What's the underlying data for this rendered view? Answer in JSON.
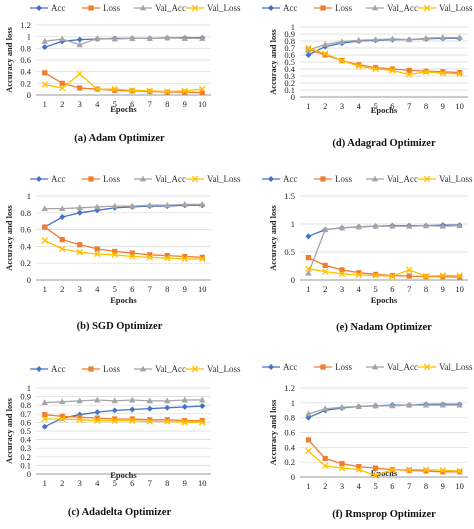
{
  "colors": {
    "acc": "#4472C4",
    "loss": "#ED7D31",
    "val_acc": "#A5A5A5",
    "val_loss": "#FFC000"
  },
  "chart_data": [
    {
      "type": "line",
      "caption": "(a) Adam Optimizer",
      "xlabel": "Epochs",
      "ylabel": "Accuracy and loss",
      "x": [
        1,
        2,
        3,
        4,
        5,
        6,
        7,
        8,
        9,
        10
      ],
      "ylim": [
        0,
        1.2
      ],
      "yticks": [
        "0",
        "0.2",
        "0.4",
        "0.6",
        "0.8",
        "1",
        "1.2"
      ],
      "grid": true,
      "legend": "top",
      "series": [
        {
          "name": "Acc",
          "values": [
            0.82,
            0.92,
            0.95,
            0.96,
            0.97,
            0.97,
            0.97,
            0.98,
            0.98,
            0.98
          ]
        },
        {
          "name": "Loss",
          "values": [
            0.38,
            0.2,
            0.12,
            0.1,
            0.08,
            0.07,
            0.06,
            0.05,
            0.05,
            0.04
          ]
        },
        {
          "name": "Val_Acc",
          "values": [
            0.92,
            0.96,
            0.86,
            0.97,
            0.96,
            0.97,
            0.97,
            0.98,
            0.97,
            0.97
          ]
        },
        {
          "name": "Val_Loss",
          "values": [
            0.18,
            0.12,
            0.36,
            0.1,
            0.1,
            0.08,
            0.07,
            0.06,
            0.07,
            0.1
          ]
        }
      ]
    },
    {
      "type": "line",
      "caption": "(d) Adagrad Optimizer",
      "xlabel": "Epochs",
      "ylabel": "Accuracy and loss",
      "x": [
        1,
        2,
        3,
        4,
        5,
        6,
        7,
        8,
        9,
        10
      ],
      "ylim": [
        0,
        1
      ],
      "yticks": [
        "0",
        "0.1",
        "0.2",
        "0.3",
        "0.4",
        "0.5",
        "0.6",
        "0.7",
        "0.8",
        "0.9",
        "1"
      ],
      "grid": true,
      "legend": "top",
      "series": [
        {
          "name": "Acc",
          "values": [
            0.6,
            0.72,
            0.77,
            0.8,
            0.81,
            0.82,
            0.82,
            0.83,
            0.84,
            0.84
          ]
        },
        {
          "name": "Loss",
          "values": [
            0.68,
            0.6,
            0.52,
            0.46,
            0.42,
            0.4,
            0.38,
            0.37,
            0.36,
            0.35
          ]
        },
        {
          "name": "Val_Acc",
          "values": [
            0.67,
            0.75,
            0.79,
            0.81,
            0.82,
            0.83,
            0.82,
            0.84,
            0.85,
            0.85
          ]
        },
        {
          "name": "Val_Loss",
          "values": [
            0.7,
            0.62,
            0.52,
            0.44,
            0.4,
            0.38,
            0.32,
            0.36,
            0.34,
            0.33
          ]
        }
      ]
    },
    {
      "type": "line",
      "caption": "(b) SGD Optimizer",
      "xlabel": "Epochs",
      "ylabel": "Accuracy and loss",
      "x": [
        1,
        2,
        3,
        4,
        5,
        6,
        7,
        8,
        9,
        10
      ],
      "ylim": [
        0,
        1
      ],
      "yticks": [
        "0",
        "0.2",
        "0.4",
        "0.6",
        "0.8",
        "1"
      ],
      "grid": true,
      "legend": "top",
      "series": [
        {
          "name": "Acc",
          "values": [
            0.63,
            0.75,
            0.8,
            0.83,
            0.86,
            0.87,
            0.88,
            0.88,
            0.89,
            0.89
          ]
        },
        {
          "name": "Loss",
          "values": [
            0.63,
            0.48,
            0.42,
            0.37,
            0.34,
            0.32,
            0.3,
            0.29,
            0.28,
            0.27
          ]
        },
        {
          "name": "Val_Acc",
          "values": [
            0.85,
            0.85,
            0.86,
            0.87,
            0.88,
            0.88,
            0.89,
            0.89,
            0.9,
            0.9
          ]
        },
        {
          "name": "Val_Loss",
          "values": [
            0.47,
            0.37,
            0.33,
            0.31,
            0.3,
            0.28,
            0.27,
            0.26,
            0.25,
            0.25
          ]
        }
      ]
    },
    {
      "type": "line",
      "caption": "(e) Nadam Optimizer",
      "xlabel": "Epochs",
      "ylabel": "Accuracy and loss",
      "x": [
        1,
        2,
        3,
        4,
        5,
        6,
        7,
        8,
        9,
        10
      ],
      "ylim": [
        0,
        1.5
      ],
      "yticks": [
        "0",
        "0.5",
        "1",
        "1.5"
      ],
      "grid": true,
      "legend": "top",
      "series": [
        {
          "name": "Acc",
          "values": [
            0.78,
            0.9,
            0.93,
            0.95,
            0.96,
            0.97,
            0.97,
            0.97,
            0.98,
            0.98
          ]
        },
        {
          "name": "Loss",
          "values": [
            0.4,
            0.26,
            0.18,
            0.13,
            0.1,
            0.08,
            0.07,
            0.06,
            0.06,
            0.05
          ]
        },
        {
          "name": "Val_Acc",
          "values": [
            0.12,
            0.9,
            0.93,
            0.95,
            0.96,
            0.96,
            0.96,
            0.97,
            0.96,
            0.97
          ]
        },
        {
          "name": "Val_Loss",
          "values": [
            0.2,
            0.15,
            0.11,
            0.09,
            0.08,
            0.07,
            0.18,
            0.07,
            0.08,
            0.08
          ]
        }
      ]
    },
    {
      "type": "line",
      "caption": "(c) Adadelta Optimizer",
      "xlabel": "Epochs",
      "ylabel": "Accuracy and loss",
      "x": [
        1,
        2,
        3,
        4,
        5,
        6,
        7,
        8,
        9,
        10
      ],
      "ylim": [
        0,
        1
      ],
      "yticks": [
        "0",
        "0.1",
        "0.2",
        "0.3",
        "0.4",
        "0.5",
        "0.6",
        "0.7",
        "0.8",
        "0.9",
        "1"
      ],
      "grid": true,
      "legend": "top",
      "series": [
        {
          "name": "Acc",
          "values": [
            0.55,
            0.65,
            0.69,
            0.72,
            0.74,
            0.75,
            0.76,
            0.77,
            0.78,
            0.79
          ]
        },
        {
          "name": "Loss",
          "values": [
            0.69,
            0.67,
            0.66,
            0.65,
            0.64,
            0.64,
            0.63,
            0.63,
            0.62,
            0.62
          ]
        },
        {
          "name": "Val_Acc",
          "values": [
            0.83,
            0.84,
            0.85,
            0.86,
            0.85,
            0.86,
            0.85,
            0.85,
            0.86,
            0.86
          ]
        },
        {
          "name": "Val_Loss",
          "values": [
            0.64,
            0.64,
            0.63,
            0.62,
            0.62,
            0.62,
            0.61,
            0.61,
            0.6,
            0.6
          ]
        }
      ]
    },
    {
      "type": "line",
      "caption": "(f) Rmsprop Optimizer",
      "xlabel": "Epochs",
      "ylabel": "Accuracy and loss",
      "x": [
        1,
        2,
        3,
        4,
        5,
        6,
        7,
        8,
        9,
        10
      ],
      "ylim": [
        0,
        1.2
      ],
      "yticks": [
        "0",
        "0.2",
        "0.4",
        "0.6",
        "0.8",
        "1",
        "1.2"
      ],
      "grid": true,
      "legend": "top",
      "series": [
        {
          "name": "Acc",
          "values": [
            0.8,
            0.9,
            0.93,
            0.95,
            0.96,
            0.97,
            0.97,
            0.98,
            0.98,
            0.98
          ]
        },
        {
          "name": "Loss",
          "values": [
            0.5,
            0.25,
            0.18,
            0.14,
            0.12,
            0.1,
            0.09,
            0.08,
            0.07,
            0.07
          ]
        },
        {
          "name": "Val_Acc",
          "values": [
            0.85,
            0.92,
            0.94,
            0.95,
            0.96,
            0.96,
            0.97,
            0.97,
            0.97,
            0.97
          ]
        },
        {
          "name": "Val_Loss",
          "values": [
            0.35,
            0.15,
            0.12,
            0.1,
            0.02,
            0.1,
            0.1,
            0.1,
            0.09,
            0.08
          ]
        }
      ]
    }
  ]
}
